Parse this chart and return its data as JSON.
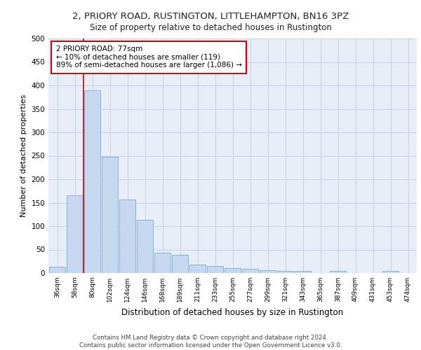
{
  "title1": "2, PRIORY ROAD, RUSTINGTON, LITTLEHAMPTON, BN16 3PZ",
  "title2": "Size of property relative to detached houses in Rustington",
  "xlabel": "Distribution of detached houses by size in Rustington",
  "ylabel": "Number of detached properties",
  "categories": [
    "36sqm",
    "58sqm",
    "80sqm",
    "102sqm",
    "124sqm",
    "146sqm",
    "168sqm",
    "189sqm",
    "211sqm",
    "233sqm",
    "255sqm",
    "277sqm",
    "299sqm",
    "321sqm",
    "343sqm",
    "365sqm",
    "387sqm",
    "409sqm",
    "431sqm",
    "453sqm",
    "474sqm"
  ],
  "values": [
    13,
    165,
    390,
    248,
    157,
    114,
    43,
    39,
    18,
    15,
    10,
    9,
    6,
    5,
    4,
    0,
    5,
    0,
    0,
    5,
    0
  ],
  "bar_color": "#c5d8f0",
  "bar_edge_color": "#7aaad4",
  "grid_color": "#c8d4e8",
  "background_color": "#e8eef8",
  "annotation_text": "2 PRIORY ROAD: 77sqm\n← 10% of detached houses are smaller (119)\n89% of semi-detached houses are larger (1,086) →",
  "vline_x_index": 2.0,
  "annotation_box_color": "#ffffff",
  "annotation_box_edge": "#cc0000",
  "footer": "Contains HM Land Registry data © Crown copyright and database right 2024.\nContains public sector information licensed under the Open Government Licence v3.0.",
  "ylim": [
    0,
    500
  ],
  "yticks": [
    0,
    50,
    100,
    150,
    200,
    250,
    300,
    350,
    400,
    450,
    500
  ]
}
